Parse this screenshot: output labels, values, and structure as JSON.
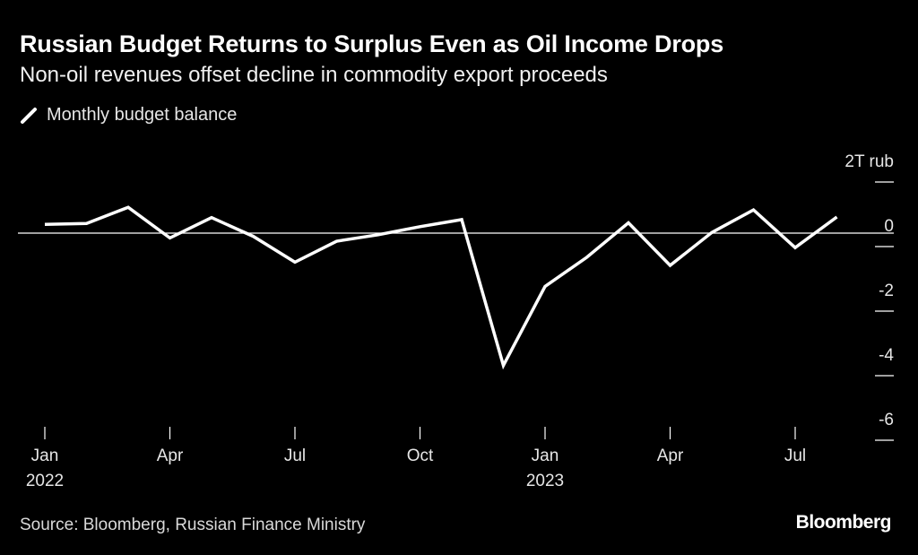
{
  "header": {
    "title": "Russian Budget Returns to Surplus Even as Oil Income Drops",
    "subtitle": "Non-oil revenues offset decline in commodity export proceeds"
  },
  "legend": {
    "label": "Monthly budget balance",
    "icon": "line-swatch-icon"
  },
  "footer": {
    "source": "Source: Bloomberg, Russian Finance Ministry",
    "brand": "Bloomberg"
  },
  "colors": {
    "background": "#000000",
    "line": "#ffffff",
    "text": "#ffffff",
    "muted_text": "#d9d9d9"
  },
  "chart_data": {
    "type": "line",
    "title": "Russian Budget Returns to Surplus Even as Oil Income Drops",
    "subtitle": "Non-oil revenues offset decline in commodity export proceeds",
    "xlabel": "",
    "ylabel": "T rub",
    "unit_label": "2T rub",
    "ylim": [
      -6,
      2
    ],
    "y_ticks": [
      2,
      0,
      -2,
      -4,
      -6
    ],
    "y_tick_labels": [
      "2T rub",
      "0",
      "-2",
      "-4",
      "-6"
    ],
    "grid": false,
    "zero_line": true,
    "legend_position": "top-left",
    "x_tick_indices": [
      0,
      3,
      6,
      9,
      12,
      15,
      18
    ],
    "x_tick_labels": [
      [
        "Jan",
        "2022"
      ],
      [
        "Apr",
        ""
      ],
      [
        "Jul",
        ""
      ],
      [
        "Oct",
        ""
      ],
      [
        "Jan",
        "2023"
      ],
      [
        "Apr",
        ""
      ],
      [
        "Jul",
        ""
      ]
    ],
    "series": [
      {
        "name": "Monthly budget balance",
        "x": [
          "2022-01",
          "2022-02",
          "2022-03",
          "2022-04",
          "2022-05",
          "2022-06",
          "2022-07",
          "2022-08",
          "2022-09",
          "2022-10",
          "2022-11",
          "2022-12",
          "2023-01",
          "2023-02",
          "2023-03",
          "2023-04",
          "2023-05",
          "2023-06",
          "2023-07",
          "2023-08"
        ],
        "values": [
          0.27,
          0.3,
          0.8,
          -0.15,
          0.48,
          -0.1,
          -0.9,
          -0.25,
          -0.05,
          0.2,
          0.42,
          -4.1,
          -1.65,
          -0.75,
          0.32,
          -1.0,
          0.02,
          0.72,
          -0.45,
          0.5
        ]
      }
    ]
  }
}
